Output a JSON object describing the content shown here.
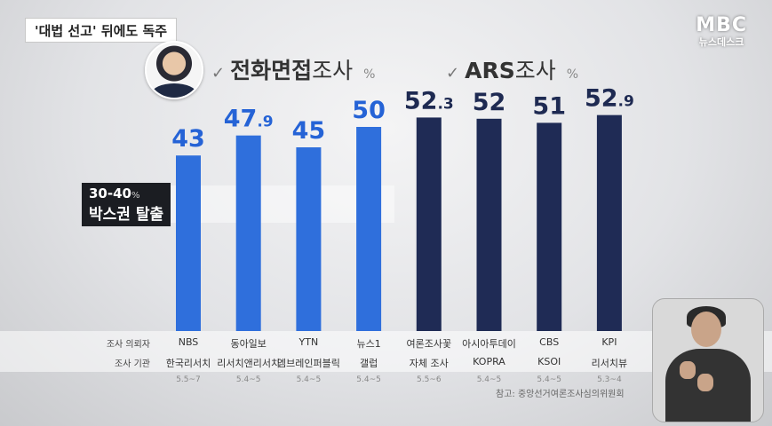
{
  "headline": "'대법 선고' 뒤에도 독주",
  "broadcaster": {
    "logo": "MBC",
    "program": "뉴스데스크"
  },
  "groups": [
    {
      "check_icon": "checkmark-icon",
      "title_bold": "전화면접",
      "title_normal": "조사",
      "unit": "%"
    },
    {
      "check_icon": "checkmark-icon",
      "title_bold": "ARS",
      "title_normal": "조사",
      "unit": "%"
    }
  ],
  "annotation": {
    "range": "30-40",
    "unit": "%",
    "text": "박스권 탈출"
  },
  "row_labels": {
    "requester": "조사 의뢰자",
    "agency": "조사 기관"
  },
  "chart_data": {
    "type": "bar",
    "unit": "%",
    "ylim": [
      0,
      60
    ],
    "categories": [
      "NBS",
      "동아일보",
      "YTN",
      "뉴스1",
      "여론조사꽃",
      "아시아투데이",
      "CBS",
      "KPI"
    ],
    "values": [
      43,
      47.9,
      45,
      50,
      52.3,
      52,
      51,
      52.9
    ],
    "value_labels": [
      {
        "int": "43",
        "dec": ""
      },
      {
        "int": "47",
        "dec": ".9"
      },
      {
        "int": "45",
        "dec": ""
      },
      {
        "int": "50",
        "dec": ""
      },
      {
        "int": "52",
        "dec": ".3"
      },
      {
        "int": "52",
        "dec": ""
      },
      {
        "int": "51",
        "dec": ""
      },
      {
        "int": "52",
        "dec": ".9"
      }
    ],
    "series_group": [
      "전화면접",
      "전화면접",
      "전화면접",
      "전화면접",
      "ARS",
      "ARS",
      "ARS",
      "ARS"
    ],
    "agencies": [
      "한국리서치",
      "리서치앤리서치",
      "엠브레인퍼블릭",
      "갤럽",
      "자체 조사",
      "KOPRA",
      "KSOI",
      "리서치뷰"
    ],
    "dates": [
      "5.5~7",
      "5.4~5",
      "5.4~5",
      "5.4~5",
      "5.5~6",
      "5.4~5",
      "5.4~5",
      "5.3~4"
    ],
    "colors": {
      "phone": "#2f6fdc",
      "ars": "#1f2b55",
      "label_phone": "#2563d6",
      "label_ars": "#1e2a52"
    }
  },
  "source": "참고: 중앙선거여론조사심의위원회",
  "sign_language_interpreter": "sign-language-interpreter"
}
